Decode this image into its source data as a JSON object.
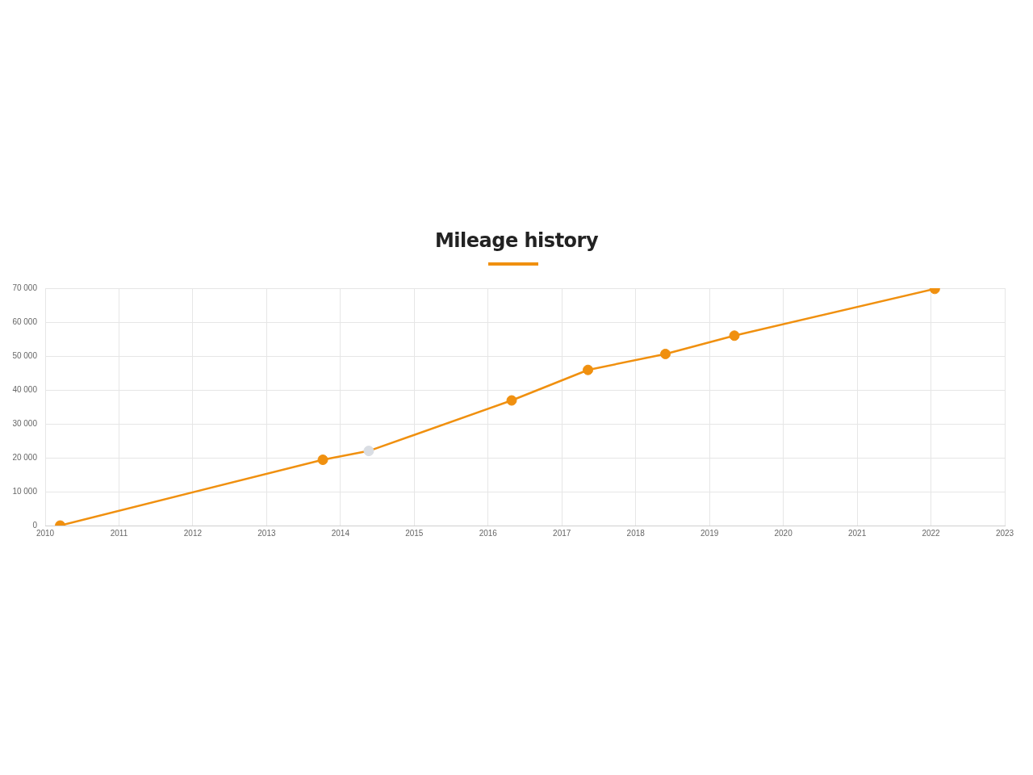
{
  "chart_data": {
    "type": "line",
    "title": "Mileage history",
    "x": [
      "2010-03-16",
      "2013-10-06",
      "2014-05-21",
      "2016-04-27",
      "2017-05-10",
      "2018-05-28",
      "2019-05-04",
      "2022-01-20"
    ],
    "series": [
      {
        "color": "#f0900f",
        "colors": [
          "#f0900f",
          "#f0900f",
          "#d9dde3",
          "#f0900f",
          "#f0900f",
          "#f0900f",
          "#f0900f",
          "#f0900f"
        ],
        "values": [
          0,
          19400,
          22000,
          36900,
          45900,
          50600,
          56000,
          69800
        ]
      }
    ],
    "xlim": [
      "2010",
      "2023"
    ],
    "xticks": [
      "2010",
      "2011",
      "2012",
      "2013",
      "2014",
      "2015",
      "2016",
      "2017",
      "2018",
      "2019",
      "2020",
      "2021",
      "2022",
      "2023"
    ],
    "ylim": [
      0,
      70000
    ],
    "yticks": [
      0,
      {
        "value": 10000,
        "label": "10 000"
      },
      {
        "value": 20000,
        "label": "20 000"
      },
      {
        "value": 30000,
        "label": "30 000"
      },
      {
        "value": 40000,
        "label": "40 000"
      },
      {
        "value": 50000,
        "label": "50 000"
      },
      {
        "value": 60000,
        "label": "60 000"
      },
      {
        "value": 70000,
        "label": "70 000"
      }
    ],
    "grid": true,
    "legend": false,
    "marker": "circle",
    "line_style": "solid"
  }
}
